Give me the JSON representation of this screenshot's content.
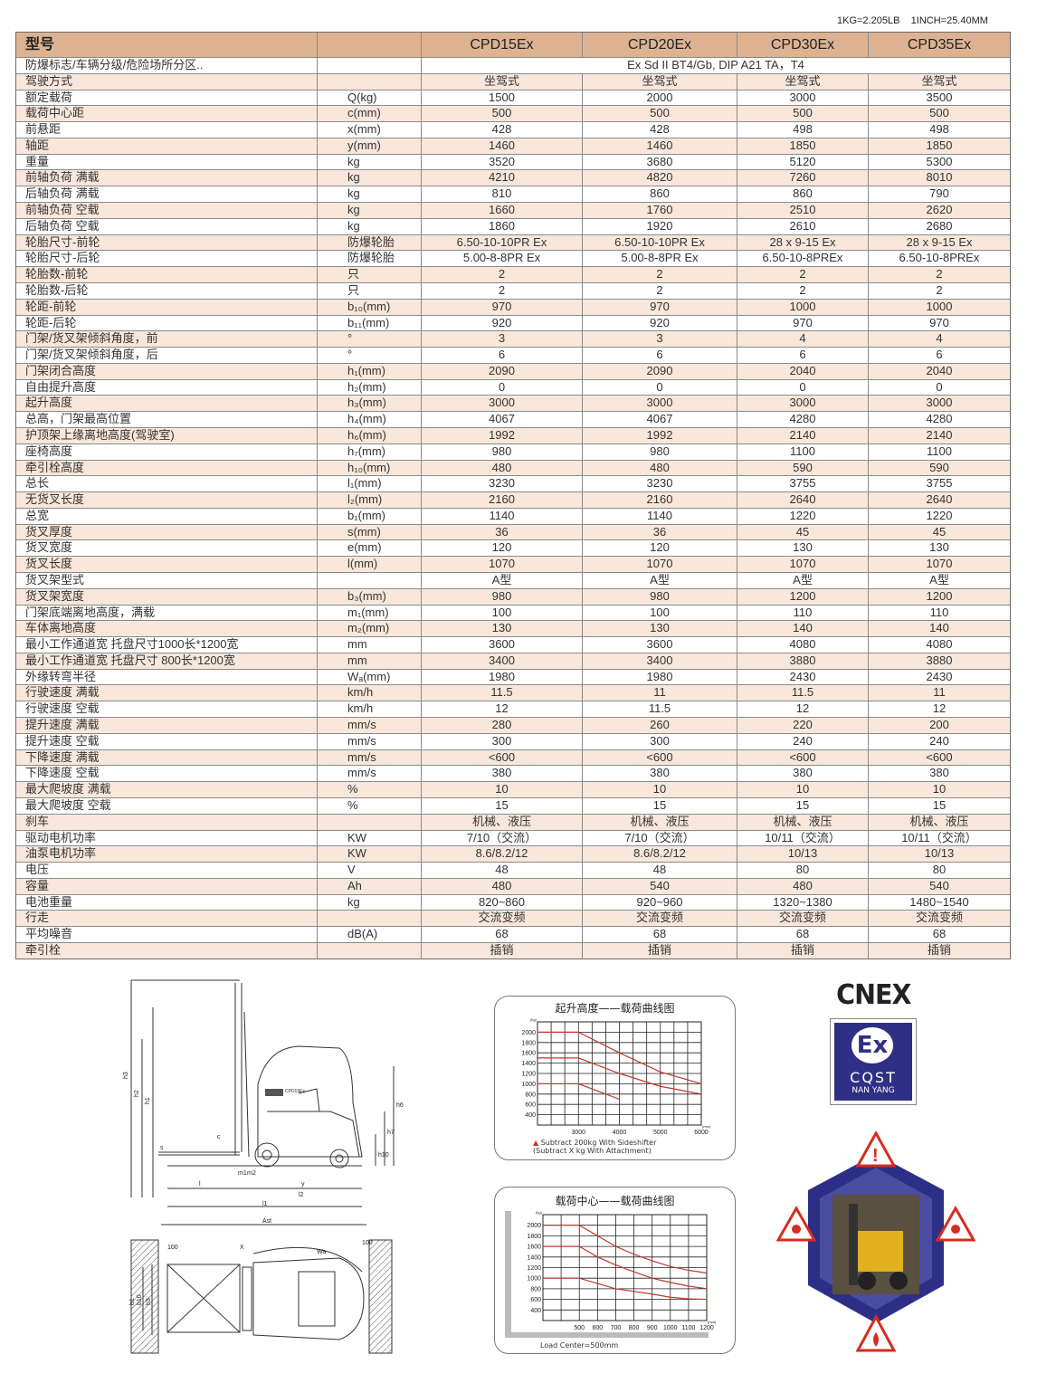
{
  "units_note": "1KG=2.205LB    1INCH=25.40MM",
  "table": {
    "header": [
      "型号",
      "",
      "CPD15Ex",
      "CPD20Ex",
      "CPD30Ex",
      "CPD35Ex"
    ],
    "rows": [
      [
        "防爆标志/车辆分级/危险场所分区..",
        "",
        "Ex Sd II BT4/Gb, DIP A21 TA，T4"
      ],
      [
        "驾驶方式",
        "",
        "坐驾式",
        "坐驾式",
        "坐驾式",
        "坐驾式"
      ],
      [
        "额定载荷",
        "Q(kg)",
        "1500",
        "2000",
        "3000",
        "3500"
      ],
      [
        "载荷中心距",
        "c(mm)",
        "500",
        "500",
        "500",
        "500"
      ],
      [
        "前悬距",
        "x(mm)",
        "428",
        "428",
        "498",
        "498"
      ],
      [
        "轴距",
        "y(mm)",
        "1460",
        "1460",
        "1850",
        "1850"
      ],
      [
        "重量",
        "kg",
        "3520",
        "3680",
        "5120",
        "5300"
      ],
      [
        "前轴负荷 满载",
        "kg",
        "4210",
        "4820",
        "7260",
        "8010"
      ],
      [
        "后轴负荷 满载",
        "kg",
        "810",
        "860",
        "860",
        "790"
      ],
      [
        "前轴负荷 空载",
        "kg",
        "1660",
        "1760",
        "2510",
        "2620"
      ],
      [
        "后轴负荷 空载",
        "kg",
        "1860",
        "1920",
        "2610",
        "2680"
      ],
      [
        "轮胎尺寸-前轮",
        "防爆轮胎",
        "6.50-10-10PR Ex",
        "6.50-10-10PR Ex",
        "28 x 9-15 Ex",
        "28 x 9-15 Ex"
      ],
      [
        "轮胎尺寸-后轮",
        "防爆轮胎",
        "5.00-8-8PR Ex",
        "5.00-8-8PR Ex",
        "6.50-10-8PREx",
        "6.50-10-8PREx"
      ],
      [
        "轮胎数-前轮",
        "只",
        "2",
        "2",
        "2",
        "2"
      ],
      [
        "轮胎数-后轮",
        "只",
        "2",
        "2",
        "2",
        "2"
      ],
      [
        "轮距-前轮",
        "b₁₀(mm)",
        "970",
        "970",
        "1000",
        "1000"
      ],
      [
        "轮距-后轮",
        "b₁₁(mm)",
        "920",
        "920",
        "970",
        "970"
      ],
      [
        "门架/货叉架倾斜角度，前",
        "°",
        "3",
        "3",
        "4",
        "4"
      ],
      [
        "门架/货叉架倾斜角度，后",
        "°",
        "6",
        "6",
        "6",
        "6"
      ],
      [
        "门架闭合高度",
        "h₁(mm)",
        "2090",
        "2090",
        "2040",
        "2040"
      ],
      [
        "自由提升高度",
        "h₂(mm)",
        "0",
        "0",
        "0",
        "0"
      ],
      [
        "起升高度",
        "h₃(mm)",
        "3000",
        "3000",
        "3000",
        "3000"
      ],
      [
        "总高，门架最高位置",
        "h₄(mm)",
        "4067",
        "4067",
        "4280",
        "4280"
      ],
      [
        "护顶架上缘离地高度(驾驶室)",
        "h₆(mm)",
        "1992",
        "1992",
        "2140",
        "2140"
      ],
      [
        "座椅高度",
        "h₇(mm)",
        "980",
        "980",
        "1100",
        "1100"
      ],
      [
        "牵引栓高度",
        "h₁₀(mm)",
        "480",
        "480",
        "590",
        "590"
      ],
      [
        "总长",
        "l₁(mm)",
        "3230",
        "3230",
        "3755",
        "3755"
      ],
      [
        "无货叉长度",
        "l₂(mm)",
        "2160",
        "2160",
        "2640",
        "2640"
      ],
      [
        "总宽",
        "b₁(mm)",
        "1140",
        "1140",
        "1220",
        "1220"
      ],
      [
        "货叉厚度",
        "s(mm)",
        "36",
        "36",
        "45",
        "45"
      ],
      [
        "货叉宽度",
        "e(mm)",
        "120",
        "120",
        "130",
        "130"
      ],
      [
        "货叉长度",
        "l(mm)",
        "1070",
        "1070",
        "1070",
        "1070"
      ],
      [
        "货叉架型式",
        "",
        "A型",
        "A型",
        "A型",
        "A型"
      ],
      [
        "货叉架宽度",
        "b₃(mm)",
        "980",
        "980",
        "1200",
        "1200"
      ],
      [
        "门架底端离地高度，满载",
        "m₁(mm)",
        "100",
        "100",
        "110",
        "110"
      ],
      [
        "车体离地高度",
        "m₂(mm)",
        "130",
        "130",
        "140",
        "140"
      ],
      [
        "最小工作通道宽 托盘尺寸1000长*1200宽",
        "mm",
        "3600",
        "3600",
        "4080",
        "4080"
      ],
      [
        "最小工作通道宽 托盘尺寸 800长*1200宽",
        "mm",
        "3400",
        "3400",
        "3880",
        "3880"
      ],
      [
        "外缘转弯半径",
        "Wₐ(mm)",
        "1980",
        "1980",
        "2430",
        "2430"
      ],
      [
        "行驶速度 满载",
        "km/h",
        "11.5",
        "11",
        "11.5",
        "11"
      ],
      [
        "行驶速度 空载",
        "km/h",
        "12",
        "11.5",
        "12",
        "12"
      ],
      [
        "提升速度 满载",
        "mm/s",
        "280",
        "260",
        "220",
        "200"
      ],
      [
        "提升速度 空载",
        "mm/s",
        "300",
        "300",
        "240",
        "240"
      ],
      [
        "下降速度 满载",
        "mm/s",
        "<600",
        "<600",
        "<600",
        "<600"
      ],
      [
        "下降速度 空载",
        "mm/s",
        "380",
        "380",
        "380",
        "380"
      ],
      [
        "最大爬坡度 满载",
        "%",
        "10",
        "10",
        "10",
        "10"
      ],
      [
        "最大爬坡度 空载",
        "%",
        "15",
        "15",
        "15",
        "15"
      ],
      [
        "刹车",
        "",
        "机械、液压",
        "机械、液压",
        "机械、液压",
        "机械、液压"
      ],
      [
        "驱动电机功率",
        "KW",
        "7/10（交流）",
        "7/10（交流）",
        "10/11（交流）",
        "10/11（交流）"
      ],
      [
        "油泵电机功率",
        "KW",
        "8.6/8.2/12",
        "8.6/8.2/12",
        "10/13",
        "10/13"
      ],
      [
        "电压",
        "V",
        "48",
        "48",
        "80",
        "80"
      ],
      [
        "容量",
        "Ah",
        "480",
        "540",
        "480",
        "540"
      ],
      [
        "电池重量",
        "kg",
        "820~860",
        "920~960",
        "1320~1380",
        "1480~1540"
      ],
      [
        "行走",
        "",
        "交流变频",
        "交流变频",
        "交流变频",
        "交流变频"
      ],
      [
        "平均噪音",
        "dB(A)",
        "68",
        "68",
        "68",
        "68"
      ],
      [
        "牵引栓",
        "",
        "插销",
        "插销",
        "插销",
        "插销"
      ]
    ]
  },
  "diagram": {
    "side_labels": [
      "h3",
      "h2",
      "h1",
      "h6",
      "h7",
      "h10",
      "c",
      "s",
      "m1",
      "m2",
      "l",
      "y",
      "l2",
      "l1"
    ],
    "top_labels": [
      "Ast",
      "100",
      "X",
      "Wa",
      "100",
      "b1",
      "b10",
      "b3"
    ],
    "truck_badge": "CPD15Ex"
  },
  "chart_data": [
    {
      "type": "line",
      "title": "起升高度——载荷曲线图",
      "xlabel": "(mm)",
      "ylabel": "(kg)",
      "x_ticks": [
        3000,
        4000,
        5000,
        6000
      ],
      "y_ticks": [
        400,
        600,
        800,
        1000,
        1200,
        1400,
        1600,
        1800,
        2000
      ],
      "xlim": [
        2000,
        6000
      ],
      "ylim": [
        200,
        2200
      ],
      "grid": true,
      "series": [
        {
          "x": [
            2000,
            3000,
            4000,
            5000,
            6000
          ],
          "y": [
            2000,
            2000,
            1600,
            1230,
            1000
          ]
        },
        {
          "x": [
            2000,
            3000,
            4000,
            5000,
            6000
          ],
          "y": [
            1500,
            1500,
            1200,
            950,
            800
          ]
        },
        {
          "x": [
            2000,
            3000,
            4000
          ],
          "y": [
            1000,
            1000,
            700
          ]
        }
      ],
      "annotations": [
        "Subtract 200kg With Sideshifter",
        "(Subtract X kg With Attachment)"
      ],
      "series_color": "#c0392b"
    },
    {
      "type": "line",
      "title": "载荷中心——载荷曲线图",
      "xlabel": "(mm)",
      "ylabel": "(kg)",
      "x_ticks": [
        500,
        600,
        700,
        800,
        900,
        1000,
        1100,
        1200
      ],
      "y_ticks": [
        400,
        600,
        800,
        1000,
        1200,
        1400,
        1600,
        1800,
        2000
      ],
      "xlim": [
        300,
        1200
      ],
      "ylim": [
        200,
        2200
      ],
      "grid": true,
      "series": [
        {
          "x": [
            300,
            500,
            600,
            700,
            800,
            900,
            1000,
            1100,
            1200
          ],
          "y": [
            2000,
            2000,
            1800,
            1600,
            1450,
            1330,
            1220,
            1150,
            1100
          ]
        },
        {
          "x": [
            300,
            500,
            600,
            700,
            800,
            900,
            1000,
            1100,
            1200
          ],
          "y": [
            1600,
            1600,
            1400,
            1250,
            1120,
            1000,
            920,
            850,
            800
          ]
        },
        {
          "x": [
            300,
            500,
            600,
            700,
            800,
            900,
            1000,
            1100,
            1200
          ],
          "y": [
            1000,
            1000,
            900,
            800,
            750,
            700,
            640,
            610,
            600
          ]
        }
      ],
      "annotations": [
        "Load Center=500mm"
      ],
      "series_color": "#c0392b"
    }
  ],
  "logos": {
    "cnex": "CNEX",
    "ex": "Ex",
    "cqst": "CQST",
    "nanyang": "NAN YANG"
  },
  "colors": {
    "header": "#dcb292",
    "alt_row": "#f8e7da",
    "hexagon": "#2d2f86",
    "warning": "#d62c1f"
  }
}
